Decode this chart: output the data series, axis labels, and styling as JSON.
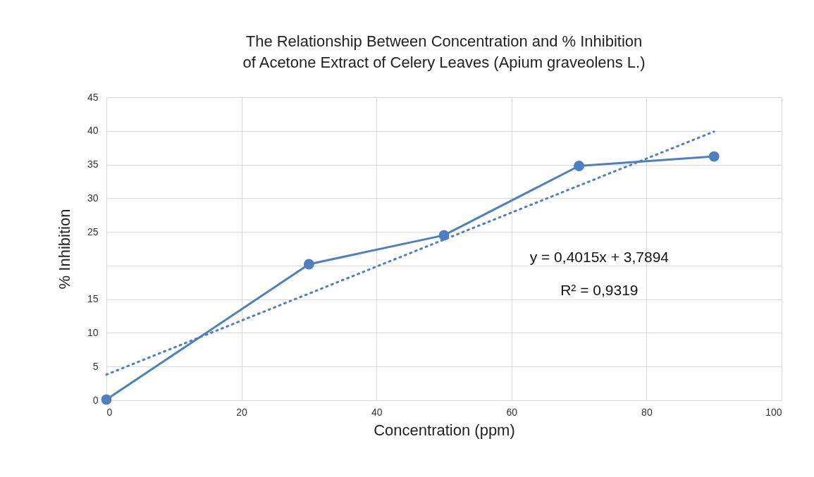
{
  "chart_data": {
    "type": "line",
    "title": "The Relationship Between Concentration and % Inhibition of Acetone Extract of Celery Leaves (Apium graveolens L.)",
    "xlabel": "Concentration (ppm)",
    "ylabel": "% Inhibition",
    "x": [
      0,
      30,
      50,
      70,
      90
    ],
    "series": [
      {
        "color": "#4e7fc0",
        "values": [
          0.1,
          20.2,
          24.5,
          34.8,
          36.2
        ],
        "marker": "circle",
        "line_style": "solid"
      },
      {
        "type": "line",
        "color": "#4e7fc0",
        "x": [
          0,
          90
        ],
        "values": [
          3.8,
          39.9
        ],
        "marker": "none",
        "line_style": "dotted"
      }
    ],
    "annotations": [
      "y = 0,4015x + 3,7894",
      "R² = 0,9319"
    ],
    "xlim": [
      0,
      100
    ],
    "xticks": [
      0,
      20,
      40,
      60,
      80,
      100
    ],
    "ylim": [
      0,
      45
    ],
    "yticks": [
      0,
      5,
      10,
      15,
      {
        "value": 20,
        "label": null
      },
      25,
      30,
      35,
      40,
      45
    ],
    "grid": true,
    "legend": false
  }
}
